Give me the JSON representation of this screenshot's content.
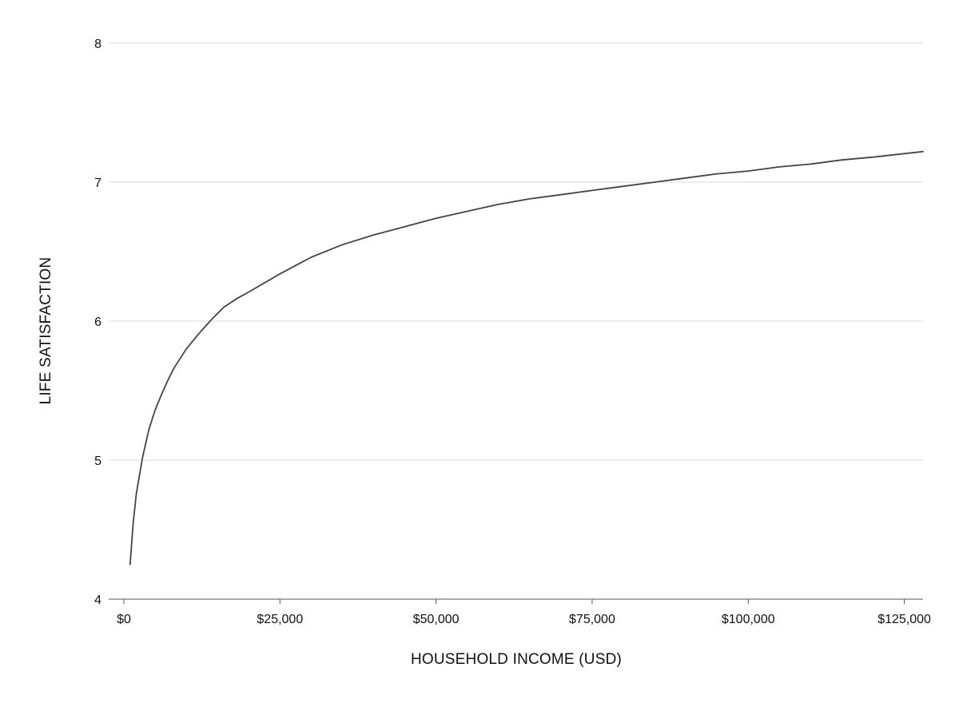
{
  "chart_data": {
    "type": "line",
    "title": "",
    "xlabel": "HOUSEHOLD INCOME  (USD)",
    "ylabel": "LIFE SATISFACTION",
    "xlim": [
      0,
      128000
    ],
    "ylim": [
      4,
      8
    ],
    "x_ticks": [
      0,
      25000,
      50000,
      75000,
      100000,
      125000
    ],
    "x_tick_labels": [
      "$0",
      "$25,000",
      "$50,000",
      "$75,000",
      "$100,000",
      "$125,000"
    ],
    "y_ticks": [
      4,
      5,
      6,
      7,
      8
    ],
    "y_tick_labels": [
      "4",
      "5",
      "6",
      "7",
      "8"
    ],
    "grid": "horizontal",
    "line_color": "#444444",
    "grid_color": "#d9d9d9",
    "series": [
      {
        "x": [
          1000,
          1500,
          2000,
          3000,
          4000,
          5000,
          6000,
          7000,
          8000,
          10000,
          12000,
          14000,
          16000,
          18000,
          20000,
          25000,
          30000,
          35000,
          40000,
          45000,
          50000,
          55000,
          60000,
          65000,
          70000,
          75000,
          80000,
          85000,
          90000,
          95000,
          100000,
          105000,
          110000,
          115000,
          120000,
          125000,
          128000
        ],
        "y": [
          4.25,
          4.55,
          4.76,
          5.02,
          5.22,
          5.36,
          5.47,
          5.57,
          5.66,
          5.8,
          5.91,
          6.01,
          6.1,
          6.16,
          6.21,
          6.34,
          6.46,
          6.55,
          6.62,
          6.68,
          6.74,
          6.79,
          6.84,
          6.88,
          6.91,
          6.94,
          6.97,
          7.0,
          7.03,
          7.06,
          7.08,
          7.11,
          7.13,
          7.16,
          7.18,
          7.205,
          7.22
        ]
      }
    ]
  }
}
